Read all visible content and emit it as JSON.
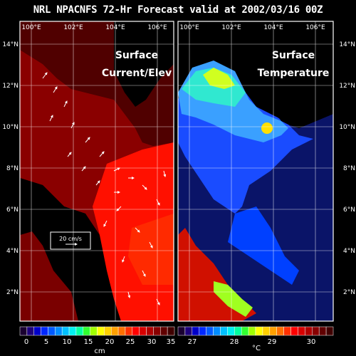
{
  "title": "NRL NPACNFS 72-Hr Forecast valid at 2002/03/16 00Z",
  "panels": [
    {
      "name": "current",
      "label_line1": "Surface",
      "label_line2": "Current/Elev",
      "lon_ticks": [
        "100°E",
        "102°E",
        "104°E",
        "106°E"
      ]
    },
    {
      "name": "temperature",
      "label_line1": "Surface",
      "label_line2": "Temperature",
      "lon_ticks": [
        "100°E",
        "102°E",
        "104°E",
        "106°E"
      ]
    }
  ],
  "lat_ticks": [
    "14°N",
    "12°N",
    "10°N",
    "8°N",
    "6°N",
    "4°N",
    "2°N"
  ],
  "vector_key": "20 cm/s",
  "colorbars": [
    {
      "name": "elevation",
      "unit": "cm",
      "tick_labels": [
        "0",
        "5",
        "10",
        "15",
        "20",
        "25",
        "30",
        "35"
      ],
      "colors": [
        "#1a0030",
        "#1e007a",
        "#0000c8",
        "#0028ff",
        "#005aff",
        "#008cff",
        "#00c0ff",
        "#00f0f0",
        "#00ffa0",
        "#30ff30",
        "#a0ff00",
        "#ffff00",
        "#ffd000",
        "#ffa000",
        "#ff7000",
        "#ff3000",
        "#ff0000",
        "#d80000",
        "#b00000",
        "#880000",
        "#600000",
        "#400000"
      ]
    },
    {
      "name": "temperature",
      "unit": "°C",
      "tick_labels": [
        "27",
        "28",
        "29",
        "30"
      ],
      "colors": [
        "#1a0030",
        "#1e007a",
        "#0000c8",
        "#0028ff",
        "#005aff",
        "#008cff",
        "#00c0ff",
        "#00f0f0",
        "#00ffa0",
        "#30ff30",
        "#a0ff00",
        "#ffff00",
        "#ffd000",
        "#ffa000",
        "#ff7000",
        "#ff3000",
        "#ff0000",
        "#d80000",
        "#b00000",
        "#880000",
        "#600000",
        "#400000"
      ]
    }
  ]
}
